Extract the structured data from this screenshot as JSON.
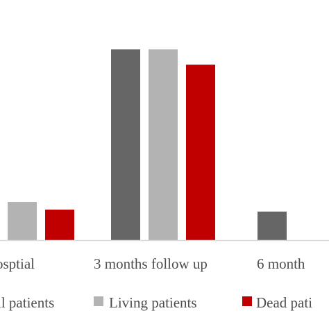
{
  "chart_data": {
    "type": "bar",
    "categories": [
      "ospital",
      "3 months follow up",
      "6 months"
    ],
    "category_labels": [
      "osptial",
      "3 months follow up",
      "6 month"
    ],
    "series": [
      {
        "name": "All patients",
        "legend_label": "ll patients",
        "color": "#666666",
        "values": [
          null,
          100,
          15
        ]
      },
      {
        "name": "Living patients",
        "legend_label": "Living  patients",
        "color": "#b3b3b3",
        "values": [
          20,
          100,
          null
        ]
      },
      {
        "name": "Dead patients",
        "legend_label": "Dead  pati",
        "color": "#c00000",
        "values": [
          16,
          92,
          null
        ]
      }
    ],
    "ylim": [
      0,
      103
    ],
    "grid": false,
    "legend_position": "bottom",
    "title": "",
    "xlabel": "",
    "ylabel": ""
  }
}
